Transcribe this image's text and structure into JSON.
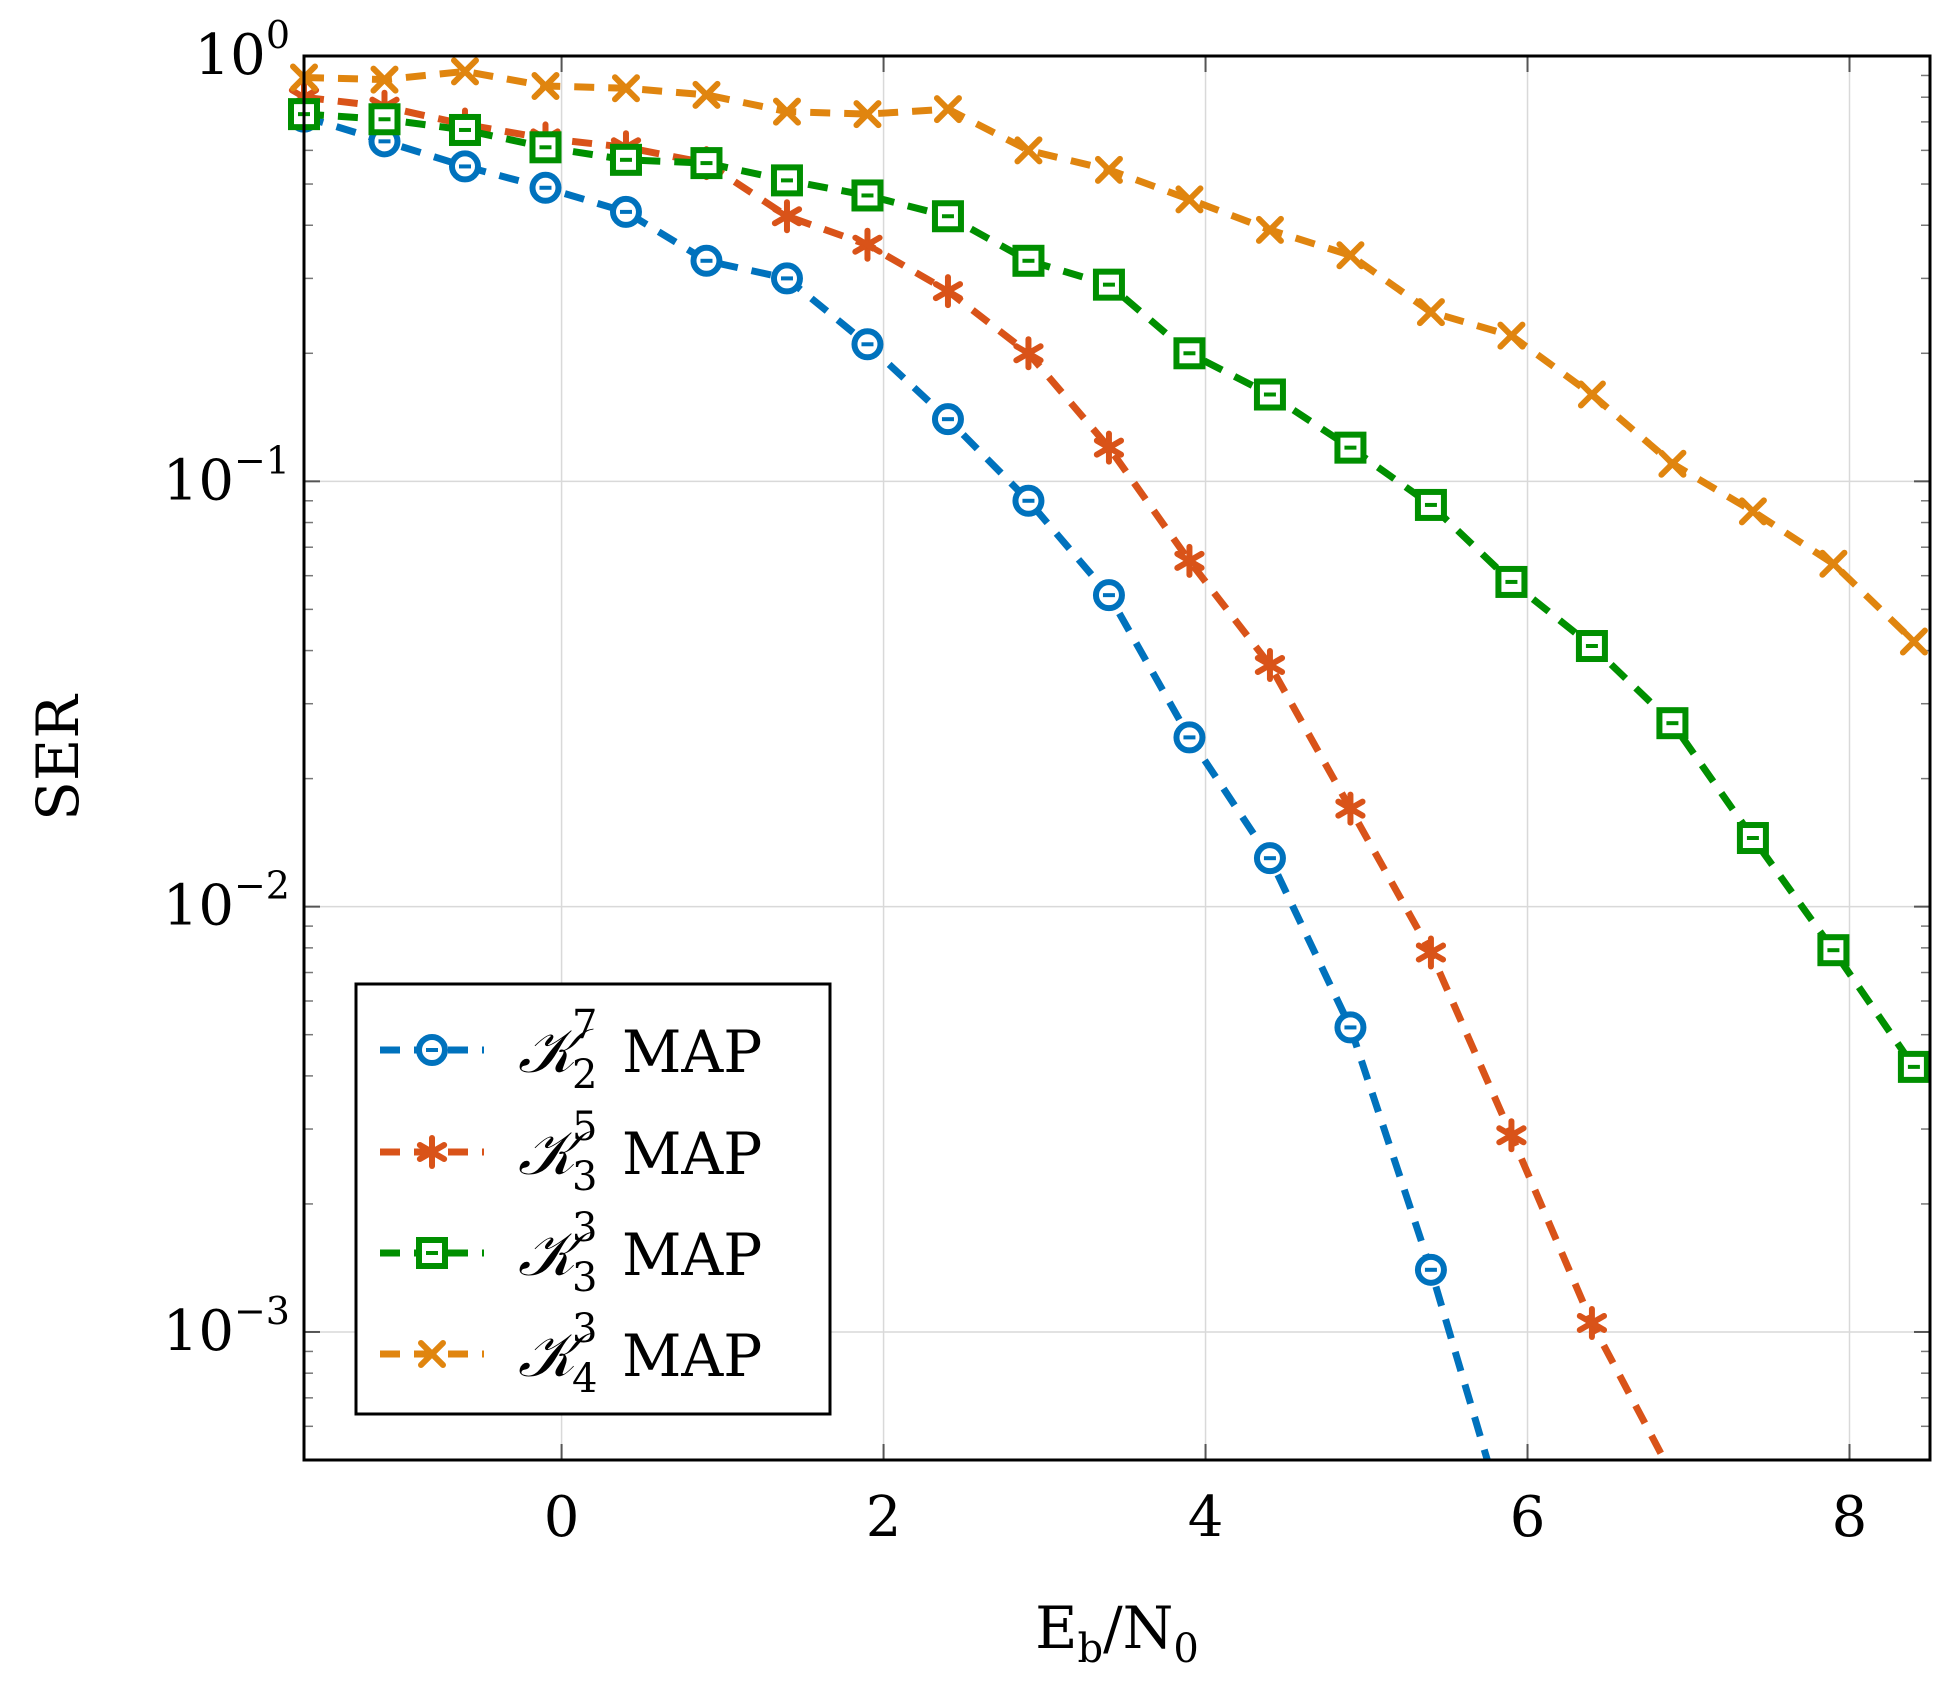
{
  "chart_data": {
    "type": "line",
    "title": "",
    "xlabel": {
      "main": "E",
      "sub1": "b",
      "sep": "/N",
      "sub2": "0"
    },
    "ylabel": "SER",
    "xlim": [
      -1.6,
      8.5
    ],
    "ylim": [
      0.0005,
      1
    ],
    "yscale": "log",
    "grid": true,
    "legend_position": "bottom-left",
    "x_ticks": [
      {
        "value": 0,
        "label": "0"
      },
      {
        "value": 2,
        "label": "2"
      },
      {
        "value": 4,
        "label": "4"
      },
      {
        "value": 6,
        "label": "6"
      },
      {
        "value": 8,
        "label": "8"
      }
    ],
    "y_ticks": [
      {
        "value": 1,
        "base": "10",
        "exp": "0"
      },
      {
        "value": 0.1,
        "base": "10",
        "exp": "−1"
      },
      {
        "value": 0.01,
        "base": "10",
        "exp": "−2"
      },
      {
        "value": 0.001,
        "base": "10",
        "exp": "−3"
      }
    ],
    "series": [
      {
        "name": "K_2^7 MAP",
        "label": {
          "symbol": "𝒦",
          "sup": "7",
          "sub": "2",
          "text": "MAP"
        },
        "color": "#0072BD",
        "marker": "circle",
        "x": [
          -1.6,
          -1.1,
          -0.6,
          -0.1,
          0.4,
          0.9,
          1.4,
          1.9,
          2.4,
          2.9,
          3.4,
          3.9,
          4.4,
          4.9,
          5.4,
          5.75
        ],
        "y": [
          0.72,
          0.63,
          0.55,
          0.49,
          0.43,
          0.33,
          0.3,
          0.21,
          0.14,
          0.09,
          0.054,
          0.025,
          0.013,
          0.0052,
          0.0014,
          0.0005
        ]
      },
      {
        "name": "K_3^5 MAP",
        "label": {
          "symbol": "𝒦",
          "sup": "5",
          "sub": "3",
          "text": "MAP"
        },
        "color": "#D95319",
        "marker": "asterisk",
        "x": [
          -1.6,
          -1.1,
          -0.6,
          -0.1,
          0.4,
          0.9,
          1.4,
          1.9,
          2.4,
          2.9,
          3.4,
          3.9,
          4.4,
          4.9,
          5.4,
          5.9,
          6.4,
          6.85
        ],
        "y": [
          0.8,
          0.76,
          0.69,
          0.64,
          0.61,
          0.56,
          0.42,
          0.36,
          0.28,
          0.2,
          0.12,
          0.065,
          0.037,
          0.017,
          0.0078,
          0.0029,
          0.00105,
          0.0005
        ]
      },
      {
        "name": "K_3^3 MAP",
        "label": {
          "symbol": "𝒦",
          "sup": "3",
          "sub": "3",
          "text": "MAP"
        },
        "color": "#008F00",
        "marker": "square",
        "x": [
          -1.6,
          -1.1,
          -0.6,
          -0.1,
          0.4,
          0.9,
          1.4,
          1.9,
          2.4,
          2.9,
          3.4,
          3.9,
          4.4,
          4.9,
          5.4,
          5.9,
          6.4,
          6.9,
          7.4,
          7.9,
          8.4
        ],
        "y": [
          0.73,
          0.71,
          0.67,
          0.61,
          0.57,
          0.56,
          0.51,
          0.47,
          0.42,
          0.33,
          0.29,
          0.2,
          0.16,
          0.12,
          0.088,
          0.058,
          0.041,
          0.027,
          0.0145,
          0.0079,
          0.0042
        ]
      },
      {
        "name": "K_4^3 MAP",
        "label": {
          "symbol": "𝒦",
          "sup": "3",
          "sub": "4",
          "text": "MAP"
        },
        "color": "#E0850F",
        "marker": "cross",
        "x": [
          -1.6,
          -1.1,
          -0.6,
          -0.1,
          0.4,
          0.9,
          1.4,
          1.9,
          2.4,
          2.9,
          3.4,
          3.9,
          4.4,
          4.9,
          5.4,
          5.9,
          6.4,
          6.9,
          7.4,
          7.9,
          8.4
        ],
        "y": [
          0.89,
          0.88,
          0.92,
          0.85,
          0.84,
          0.81,
          0.74,
          0.73,
          0.75,
          0.6,
          0.54,
          0.46,
          0.39,
          0.34,
          0.25,
          0.22,
          0.16,
          0.11,
          0.085,
          0.064,
          0.042
        ]
      }
    ]
  }
}
